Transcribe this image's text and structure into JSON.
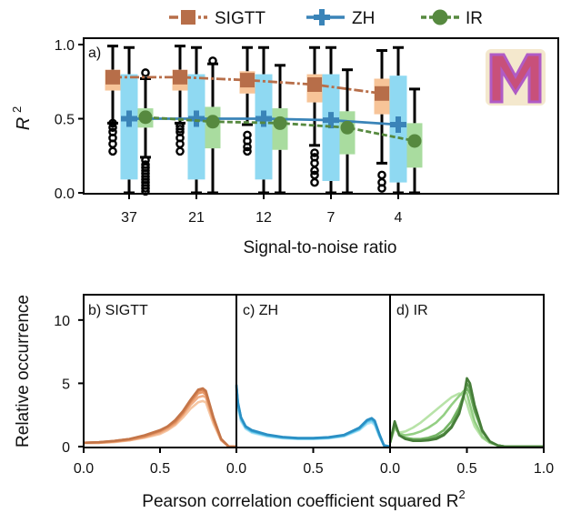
{
  "legend": [
    {
      "label": "SIGTT",
      "color": "#b76e49",
      "marker": "square"
    },
    {
      "label": "ZH",
      "color": "#3a84b8",
      "marker": "plus"
    },
    {
      "label": "IR",
      "color": "#56893f",
      "marker": "circle"
    }
  ],
  "logo": {
    "letter": "M",
    "icon": "m-logo-icon"
  },
  "chart_data": [
    {
      "type": "box",
      "panel_label": "a)",
      "xlabel": "Signal-to-noise ratio",
      "ylabel": "R",
      "ylabel_superscript": "2",
      "categories": [
        "37",
        "21",
        "12",
        "7",
        "4"
      ],
      "ylim": [
        0,
        1
      ],
      "yticks": [
        "0.0",
        "0.5",
        "1.0"
      ],
      "series": [
        {
          "name": "SIGTT",
          "box_color": "#f7c498",
          "line_color": "#b76e49",
          "medians": [
            0.78,
            0.78,
            0.76,
            0.73,
            0.67
          ],
          "q1": [
            0.69,
            0.69,
            0.67,
            0.61,
            0.53
          ],
          "q3": [
            0.83,
            0.83,
            0.82,
            0.8,
            0.77
          ],
          "whisker_low": [
            0.47,
            0.47,
            0.46,
            0.32,
            0.2
          ],
          "whisker_high": [
            0.99,
            0.99,
            0.98,
            0.98,
            0.96
          ],
          "outliers": [
            [
              0.47,
              0.44,
              0.41,
              0.37,
              0.33,
              0.28
            ],
            [
              0.45,
              0.43,
              0.41,
              0.37,
              0.33,
              0.28
            ],
            [
              0.39,
              0.35,
              0.31,
              0.28
            ],
            [
              0.27,
              0.24,
              0.2,
              0.15,
              0.12,
              0.07
            ],
            [
              0.12,
              0.07,
              0.03
            ]
          ]
        },
        {
          "name": "ZH",
          "box_color": "#8fd9f2",
          "line_color": "#3a84b8",
          "medians": [
            0.5,
            0.5,
            0.5,
            0.49,
            0.46
          ],
          "q1": [
            0.09,
            0.09,
            0.09,
            0.08,
            0.07
          ],
          "q3": [
            0.8,
            0.8,
            0.8,
            0.8,
            0.79
          ],
          "whisker_low": [
            0.0,
            0.0,
            0.0,
            0.0,
            0.0
          ],
          "whisker_high": [
            0.98,
            0.98,
            0.98,
            0.98,
            0.98
          ],
          "outliers": [
            [],
            [],
            [],
            [],
            []
          ]
        },
        {
          "name": "IR",
          "box_color": "#a9dc9f",
          "line_color": "#56893f",
          "medians": [
            0.51,
            0.48,
            0.47,
            0.44,
            0.35
          ],
          "q1": [
            0.44,
            0.3,
            0.29,
            0.26,
            0.17
          ],
          "q3": [
            0.57,
            0.58,
            0.57,
            0.55,
            0.47
          ],
          "whisker_low": [
            0.24,
            0.0,
            0.0,
            0.0,
            0.0
          ],
          "whisker_high": [
            0.77,
            0.87,
            0.86,
            0.83,
            0.7
          ],
          "outliers": [
            [
              0.81,
              0.22,
              0.19,
              0.17,
              0.15,
              0.13,
              0.11,
              0.09,
              0.07,
              0.05,
              0.03,
              0.01
            ],
            [
              0.89
            ],
            [],
            [],
            []
          ]
        }
      ],
      "grid": false
    },
    {
      "type": "line",
      "panel_label": "b) SIGTT",
      "xlim": [
        0,
        1
      ],
      "ylim": [
        0,
        12
      ],
      "xticks": [
        "0.0",
        "0.5"
      ],
      "yticks": [
        "0",
        "5",
        "10"
      ],
      "ylabel": "Relative occurrence",
      "x": [
        0.0,
        0.1,
        0.2,
        0.3,
        0.4,
        0.5,
        0.55,
        0.6,
        0.65,
        0.7,
        0.75,
        0.78,
        0.8,
        0.85,
        0.9,
        0.95,
        1.0
      ],
      "series": [
        {
          "color": "#f6c6a2",
          "values": [
            0.3,
            0.3,
            0.35,
            0.5,
            0.7,
            1.0,
            1.3,
            1.7,
            2.3,
            3.0,
            3.5,
            3.6,
            3.5,
            1.8,
            0.5,
            0.0,
            0.0
          ]
        },
        {
          "color": "#f0ae86",
          "values": [
            0.3,
            0.3,
            0.4,
            0.5,
            0.75,
            1.1,
            1.4,
            1.8,
            2.5,
            3.3,
            3.9,
            4.0,
            3.9,
            2.0,
            0.5,
            0.0,
            0.0
          ]
        },
        {
          "color": "#e79868",
          "values": [
            0.3,
            0.3,
            0.4,
            0.55,
            0.8,
            1.2,
            1.5,
            1.9,
            2.6,
            3.5,
            4.2,
            4.3,
            4.1,
            2.1,
            0.6,
            0.0,
            0.0
          ]
        },
        {
          "color": "#d88553",
          "values": [
            0.3,
            0.35,
            0.45,
            0.6,
            0.85,
            1.25,
            1.6,
            2.0,
            2.7,
            3.6,
            4.4,
            4.5,
            4.3,
            2.2,
            0.6,
            0.0,
            0.0
          ]
        },
        {
          "color": "#c47548",
          "values": [
            0.3,
            0.35,
            0.45,
            0.6,
            0.9,
            1.3,
            1.6,
            2.1,
            2.8,
            3.7,
            4.5,
            4.6,
            4.4,
            2.3,
            0.6,
            0.0,
            0.0
          ]
        }
      ]
    },
    {
      "type": "line",
      "panel_label": "c) ZH",
      "xlim": [
        0,
        1
      ],
      "ylim": [
        0,
        12
      ],
      "xticks": [
        "0.0",
        "0.5"
      ],
      "x": [
        0.0,
        0.01,
        0.03,
        0.06,
        0.1,
        0.2,
        0.3,
        0.4,
        0.5,
        0.6,
        0.7,
        0.8,
        0.85,
        0.88,
        0.9,
        0.93,
        0.96,
        1.0
      ],
      "series": [
        {
          "color": "#b9e6f6",
          "values": [
            4.2,
            3.0,
            2.0,
            1.4,
            1.1,
            0.8,
            0.65,
            0.6,
            0.6,
            0.65,
            0.8,
            1.3,
            1.8,
            1.9,
            1.7,
            0.8,
            0.1,
            0.0
          ]
        },
        {
          "color": "#8fd9f2",
          "values": [
            4.5,
            3.2,
            2.1,
            1.5,
            1.15,
            0.85,
            0.7,
            0.62,
            0.62,
            0.68,
            0.85,
            1.35,
            1.9,
            2.0,
            1.8,
            0.9,
            0.1,
            0.0
          ]
        },
        {
          "color": "#5ec4e8",
          "values": [
            4.7,
            3.3,
            2.2,
            1.5,
            1.2,
            0.9,
            0.72,
            0.64,
            0.64,
            0.7,
            0.88,
            1.4,
            2.0,
            2.1,
            1.9,
            0.9,
            0.1,
            0.0
          ]
        },
        {
          "color": "#3aa9d8",
          "values": [
            4.8,
            3.4,
            2.3,
            1.6,
            1.25,
            0.92,
            0.74,
            0.66,
            0.66,
            0.72,
            0.9,
            1.45,
            2.05,
            2.2,
            2.0,
            1.0,
            0.1,
            0.0
          ]
        },
        {
          "color": "#2a8fc4",
          "values": [
            4.9,
            3.5,
            2.3,
            1.6,
            1.3,
            0.95,
            0.76,
            0.68,
            0.68,
            0.74,
            0.92,
            1.5,
            2.1,
            2.25,
            2.05,
            1.0,
            0.1,
            0.0
          ]
        }
      ]
    },
    {
      "type": "line",
      "panel_label": "d) IR",
      "xlim": [
        0,
        1
      ],
      "ylim": [
        0,
        12
      ],
      "xticks": [
        "0.0",
        "0.5",
        "1.0"
      ],
      "x": [
        0.0,
        0.03,
        0.06,
        0.1,
        0.15,
        0.2,
        0.25,
        0.3,
        0.35,
        0.4,
        0.45,
        0.48,
        0.5,
        0.52,
        0.55,
        0.6,
        0.65,
        0.7,
        0.75,
        0.8,
        0.9,
        1.0
      ],
      "series": [
        {
          "color": "#b8e3a8",
          "values": [
            0.3,
            1.4,
            1.1,
            1.2,
            1.5,
            1.9,
            2.4,
            2.9,
            3.4,
            3.9,
            4.2,
            4.0,
            3.4,
            2.6,
            1.6,
            0.7,
            0.3,
            0.1,
            0.0,
            0.0,
            0.0,
            0.0
          ]
        },
        {
          "color": "#94cf84",
          "values": [
            0.3,
            1.6,
            1.0,
            0.9,
            1.0,
            1.2,
            1.5,
            1.9,
            2.5,
            3.3,
            4.0,
            4.4,
            4.2,
            3.3,
            2.0,
            0.8,
            0.3,
            0.1,
            0.0,
            0.0,
            0.0,
            0.0
          ]
        },
        {
          "color": "#74b465",
          "values": [
            0.3,
            1.8,
            0.9,
            0.7,
            0.6,
            0.6,
            0.7,
            0.9,
            1.3,
            2.0,
            3.1,
            4.1,
            4.6,
            4.2,
            2.8,
            1.2,
            0.4,
            0.1,
            0.0,
            0.0,
            0.0,
            0.0
          ]
        },
        {
          "color": "#5c9a4d",
          "values": [
            0.3,
            1.9,
            0.9,
            0.6,
            0.5,
            0.5,
            0.55,
            0.7,
            1.0,
            1.6,
            2.8,
            4.1,
            5.0,
            4.6,
            3.0,
            1.2,
            0.4,
            0.1,
            0.0,
            0.0,
            0.0,
            0.0
          ]
        },
        {
          "color": "#467d39",
          "values": [
            0.3,
            2.0,
            0.9,
            0.6,
            0.45,
            0.45,
            0.5,
            0.6,
            0.9,
            1.5,
            2.6,
            4.0,
            5.4,
            5.0,
            3.3,
            1.3,
            0.4,
            0.1,
            0.0,
            0.0,
            0.0,
            0.0
          ]
        }
      ]
    }
  ],
  "bottom_xlabel": "Pearson correlation coefficient squared R",
  "bottom_xlabel_superscript": "2"
}
